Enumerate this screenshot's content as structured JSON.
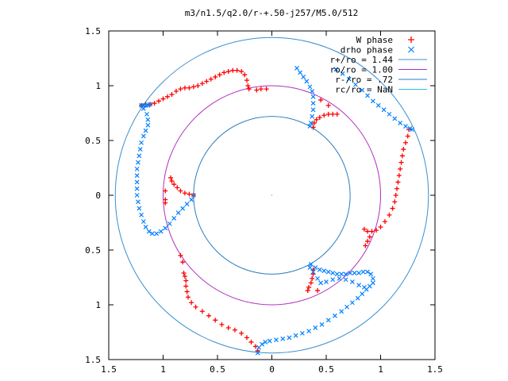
{
  "chart_data": {
    "type": "scatter",
    "title": "m3/n1.5/q2.0/r-+.50-j257/M5.0/512",
    "xlabel": "",
    "ylabel": "",
    "xlim": [
      -1.5,
      1.5
    ],
    "ylim": [
      -1.5,
      1.5
    ],
    "grid": false,
    "legend_position": "top-right",
    "x_ticks": [
      {
        "value": -1.5,
        "label": "1.5"
      },
      {
        "value": -1.0,
        "label": "1"
      },
      {
        "value": -0.5,
        "label": "0.5"
      },
      {
        "value": 0.0,
        "label": "0"
      },
      {
        "value": 0.5,
        "label": "0.5"
      },
      {
        "value": 1.0,
        "label": "1"
      },
      {
        "value": 1.5,
        "label": "1.5"
      }
    ],
    "y_ticks": [
      {
        "value": 1.5,
        "label": "1.5"
      },
      {
        "value": 1.0,
        "label": "1"
      },
      {
        "value": 0.5,
        "label": "0.5"
      },
      {
        "value": 0.0,
        "label": "0"
      },
      {
        "value": -0.5,
        "label": "0.5"
      },
      {
        "value": -1.0,
        "label": "1"
      },
      {
        "value": -1.5,
        "label": "1.5"
      }
    ],
    "legend": [
      {
        "label": "W phase",
        "symbol": "plus",
        "color": "#ff0000"
      },
      {
        "label": "drho phase",
        "symbol": "cross",
        "color": "#0080ff"
      },
      {
        "label": "r+/ro = 1.44",
        "symbol": "line",
        "color": "#3a8fd0"
      },
      {
        "label": "ro/ro = 1.00",
        "symbol": "line",
        "color": "#b030c0"
      },
      {
        "label": "r-/ro = .72",
        "symbol": "line",
        "color": "#2a7fc0"
      },
      {
        "label": "rc/ro = NaN",
        "symbol": "line",
        "color": "#30b8e8"
      }
    ],
    "circles": [
      {
        "name": "r+/ro",
        "radius": 1.44,
        "color": "#3a8fd0"
      },
      {
        "name": "ro/ro",
        "radius": 1.0,
        "color": "#b030c0"
      },
      {
        "name": "r-/ro",
        "radius": 0.72,
        "color": "#2a7fc0"
      }
    ],
    "series": [
      {
        "name": "W phase",
        "color": "#ff0000",
        "points": [
          [
            -1.2,
            0.82
          ],
          [
            -1.16,
            0.83
          ],
          [
            -1.12,
            0.83
          ],
          [
            -1.08,
            0.84
          ],
          [
            -1.04,
            0.86
          ],
          [
            -1.0,
            0.88
          ],
          [
            -0.96,
            0.9
          ],
          [
            -0.92,
            0.92
          ],
          [
            -0.88,
            0.95
          ],
          [
            -0.84,
            0.97
          ],
          [
            -0.8,
            0.98
          ],
          [
            -0.76,
            0.98
          ],
          [
            -0.72,
            0.99
          ],
          [
            -0.68,
            1.0
          ],
          [
            -0.64,
            1.02
          ],
          [
            -0.6,
            1.04
          ],
          [
            -0.56,
            1.06
          ],
          [
            -0.52,
            1.08
          ],
          [
            -0.48,
            1.1
          ],
          [
            -0.44,
            1.12
          ],
          [
            -0.4,
            1.13
          ],
          [
            -0.36,
            1.14
          ],
          [
            -0.32,
            1.14
          ],
          [
            -0.28,
            1.13
          ],
          [
            -0.25,
            1.1
          ],
          [
            -0.23,
            1.05
          ],
          [
            -0.22,
            1.0
          ],
          [
            -0.21,
            0.97
          ],
          [
            -0.14,
            0.96
          ],
          [
            -0.1,
            0.97
          ],
          [
            -0.05,
            0.97
          ],
          [
            0.45,
            0.87
          ],
          [
            0.52,
            0.82
          ],
          [
            0.38,
            0.62
          ],
          [
            0.39,
            0.66
          ],
          [
            0.41,
            0.69
          ],
          [
            0.44,
            0.71
          ],
          [
            0.48,
            0.73
          ],
          [
            0.52,
            0.74
          ],
          [
            0.56,
            0.74
          ],
          [
            0.6,
            0.74
          ],
          [
            1.26,
            0.6
          ],
          [
            1.25,
            0.54
          ],
          [
            1.23,
            0.48
          ],
          [
            1.21,
            0.42
          ],
          [
            1.2,
            0.36
          ],
          [
            1.19,
            0.3
          ],
          [
            1.18,
            0.24
          ],
          [
            1.17,
            0.18
          ],
          [
            1.16,
            0.12
          ],
          [
            1.15,
            0.06
          ],
          [
            1.14,
            0.0
          ],
          [
            1.13,
            -0.06
          ],
          [
            1.11,
            -0.12
          ],
          [
            1.08,
            -0.18
          ],
          [
            1.04,
            -0.24
          ],
          [
            1.0,
            -0.29
          ],
          [
            0.96,
            -0.32
          ],
          [
            0.92,
            -0.33
          ],
          [
            0.88,
            -0.33
          ],
          [
            0.85,
            -0.31
          ],
          [
            0.9,
            -0.38
          ],
          [
            0.88,
            -0.42
          ],
          [
            0.86,
            -0.46
          ],
          [
            0.33,
            -0.87
          ],
          [
            0.34,
            -0.84
          ],
          [
            0.36,
            -0.8
          ],
          [
            0.37,
            -0.76
          ],
          [
            0.38,
            -0.72
          ],
          [
            0.38,
            -0.68
          ],
          [
            0.42,
            -0.87
          ],
          [
            -0.13,
            -1.42
          ],
          [
            -0.15,
            -1.38
          ],
          [
            -0.19,
            -1.34
          ],
          [
            -0.23,
            -1.3
          ],
          [
            -0.28,
            -1.26
          ],
          [
            -0.34,
            -1.23
          ],
          [
            -0.4,
            -1.21
          ],
          [
            -0.46,
            -1.18
          ],
          [
            -0.52,
            -1.14
          ],
          [
            -0.58,
            -1.1
          ],
          [
            -0.64,
            -1.06
          ],
          [
            -0.7,
            -1.02
          ],
          [
            -0.74,
            -0.98
          ],
          [
            -0.77,
            -0.93
          ],
          [
            -0.78,
            -0.88
          ],
          [
            -0.79,
            -0.83
          ],
          [
            -0.79,
            -0.78
          ],
          [
            -0.8,
            -0.74
          ],
          [
            -0.81,
            -0.71
          ],
          [
            -0.84,
            -0.55
          ],
          [
            -0.82,
            -0.61
          ],
          [
            -0.72,
            0.0
          ],
          [
            -0.76,
            0.01
          ],
          [
            -0.8,
            0.02
          ],
          [
            -0.84,
            0.04
          ],
          [
            -0.87,
            0.07
          ],
          [
            -0.9,
            0.1
          ],
          [
            -0.92,
            0.13
          ],
          [
            -0.93,
            0.16
          ],
          [
            -0.98,
            0.04
          ],
          [
            -0.98,
            -0.04
          ],
          [
            -0.98,
            -0.07
          ]
        ]
      },
      {
        "name": "drho phase",
        "color": "#0080ff",
        "points": [
          [
            0.23,
            1.16
          ],
          [
            0.26,
            1.12
          ],
          [
            0.29,
            1.08
          ],
          [
            0.32,
            1.04
          ],
          [
            0.35,
            0.99
          ],
          [
            0.37,
            0.95
          ],
          [
            0.38,
            0.9
          ],
          [
            0.38,
            0.84
          ],
          [
            0.38,
            0.78
          ],
          [
            0.37,
            0.72
          ],
          [
            0.36,
            0.66
          ],
          [
            0.35,
            0.63
          ],
          [
            0.59,
            1.15
          ],
          [
            0.65,
            1.11
          ],
          [
            0.71,
            1.06
          ],
          [
            0.77,
            1.01
          ],
          [
            0.83,
            0.96
          ],
          [
            0.88,
            0.91
          ],
          [
            0.93,
            0.86
          ],
          [
            0.98,
            0.82
          ],
          [
            1.03,
            0.78
          ],
          [
            1.08,
            0.74
          ],
          [
            1.13,
            0.7
          ],
          [
            1.18,
            0.66
          ],
          [
            1.23,
            0.63
          ],
          [
            1.27,
            0.61
          ],
          [
            1.29,
            0.6
          ],
          [
            -1.2,
            0.82
          ],
          [
            -1.18,
            0.79
          ],
          [
            -1.15,
            0.74
          ],
          [
            -1.14,
            0.69
          ],
          [
            -1.14,
            0.64
          ],
          [
            -1.16,
            0.59
          ],
          [
            -1.18,
            0.54
          ],
          [
            -1.2,
            0.48
          ],
          [
            -1.21,
            0.42
          ],
          [
            -1.22,
            0.36
          ],
          [
            -1.23,
            0.3
          ],
          [
            -1.24,
            0.24
          ],
          [
            -1.24,
            0.18
          ],
          [
            -1.24,
            0.12
          ],
          [
            -1.24,
            0.06
          ],
          [
            -1.24,
            0.0
          ],
          [
            -1.23,
            -0.06
          ],
          [
            -1.22,
            -0.12
          ],
          [
            -1.2,
            -0.18
          ],
          [
            -1.18,
            -0.24
          ],
          [
            -1.16,
            -0.29
          ],
          [
            -1.13,
            -0.33
          ],
          [
            -1.1,
            -0.35
          ],
          [
            -1.06,
            -0.35
          ],
          [
            -1.02,
            -0.33
          ],
          [
            -0.98,
            -0.3
          ],
          [
            -0.94,
            -0.26
          ],
          [
            -0.9,
            -0.21
          ],
          [
            -0.86,
            -0.16
          ],
          [
            -0.82,
            -0.12
          ],
          [
            -0.78,
            -0.08
          ],
          [
            -0.74,
            -0.04
          ],
          [
            -0.72,
            0.0
          ],
          [
            -1.12,
            0.83
          ],
          [
            -1.14,
            0.82
          ],
          [
            -1.16,
            0.82
          ],
          [
            -1.18,
            0.82
          ],
          [
            0.36,
            -0.63
          ],
          [
            0.4,
            -0.66
          ],
          [
            0.44,
            -0.68
          ],
          [
            0.48,
            -0.69
          ],
          [
            0.52,
            -0.7
          ],
          [
            0.56,
            -0.71
          ],
          [
            0.6,
            -0.72
          ],
          [
            0.64,
            -0.72
          ],
          [
            0.68,
            -0.72
          ],
          [
            0.72,
            -0.71
          ],
          [
            0.76,
            -0.71
          ],
          [
            0.8,
            -0.71
          ],
          [
            0.84,
            -0.7
          ],
          [
            0.88,
            -0.7
          ],
          [
            0.91,
            -0.72
          ],
          [
            0.93,
            -0.76
          ],
          [
            0.93,
            -0.8
          ],
          [
            0.9,
            -0.83
          ],
          [
            0.85,
            -0.84
          ],
          [
            0.8,
            -0.82
          ],
          [
            0.74,
            -0.79
          ],
          [
            0.68,
            -0.77
          ],
          [
            0.62,
            -0.76
          ],
          [
            0.56,
            -0.77
          ],
          [
            0.5,
            -0.79
          ],
          [
            0.45,
            -0.8
          ],
          [
            0.42,
            -0.76
          ],
          [
            0.38,
            -0.7
          ],
          [
            0.35,
            -0.66
          ],
          [
            0.87,
            -0.86
          ],
          [
            0.83,
            -0.9
          ],
          [
            0.79,
            -0.94
          ],
          [
            0.74,
            -0.98
          ],
          [
            0.69,
            -1.02
          ],
          [
            0.64,
            -1.06
          ],
          [
            0.58,
            -1.1
          ],
          [
            0.52,
            -1.14
          ],
          [
            0.46,
            -1.18
          ],
          [
            0.4,
            -1.21
          ],
          [
            0.34,
            -1.24
          ],
          [
            0.28,
            -1.26
          ],
          [
            0.22,
            -1.28
          ],
          [
            0.16,
            -1.3
          ],
          [
            0.1,
            -1.31
          ],
          [
            0.04,
            -1.32
          ],
          [
            -0.02,
            -1.33
          ],
          [
            -0.06,
            -1.34
          ],
          [
            -0.09,
            -1.36
          ],
          [
            -0.12,
            -1.39
          ],
          [
            -0.13,
            -1.44
          ]
        ]
      }
    ]
  }
}
